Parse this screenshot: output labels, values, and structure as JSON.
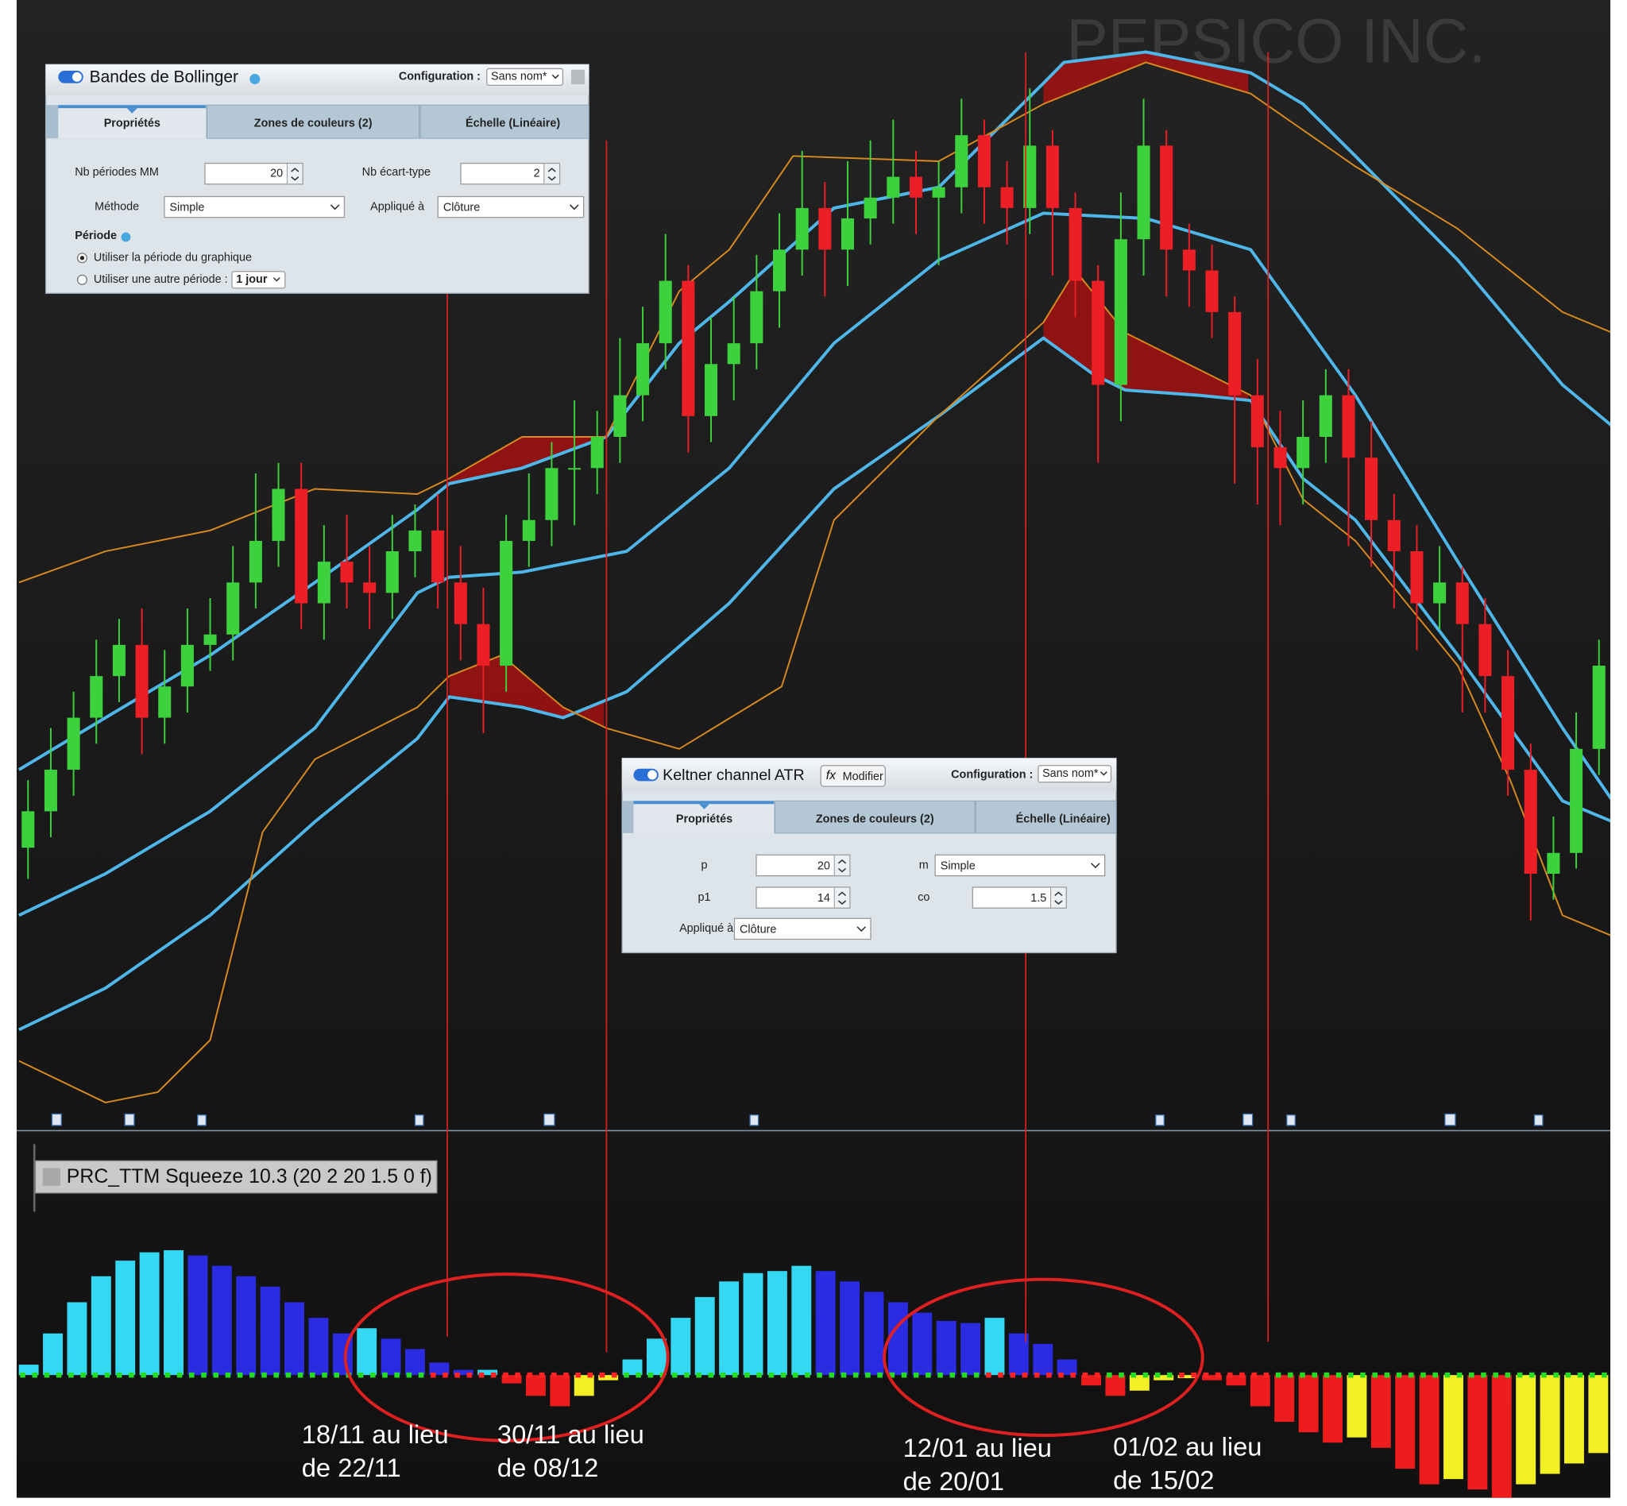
{
  "watermark": "PEPSICO INC.",
  "bollinger_panel": {
    "title": "Bandes de Bollinger",
    "config_label": "Configuration :",
    "config_value": "Sans nom*",
    "tabs": [
      "Propriétés",
      "Zones de couleurs (2)",
      "Échelle (Linéaire)"
    ],
    "periods_label": "Nb périodes MM",
    "periods": 20,
    "stddev_label": "Nb écart-type",
    "stddev": 2,
    "method_label": "Méthode",
    "method": "Simple",
    "applied_label": "Appliqué à",
    "applied": "Clôture",
    "period_heading": "Période",
    "radio_chart": "Utiliser la période du graphique",
    "radio_other": "Utiliser une autre période :",
    "other_period": "1 jour"
  },
  "keltner_panel": {
    "title": "Keltner channel ATR",
    "modify_icon": "fx",
    "modify": "Modifier",
    "config_label": "Configuration :",
    "config_value": "Sans nom*",
    "tabs": [
      "Propriétés",
      "Zones de couleurs (2)",
      "Échelle (Linéaire)"
    ],
    "p_label": "p",
    "p": 20,
    "m_label": "m",
    "m": "Simple",
    "p1_label": "p1",
    "p1": 14,
    "co_label": "co",
    "co": 1.5,
    "applied_label": "Appliqué à",
    "applied": "Clôture"
  },
  "indicator_label": "PRC_TTM Squeeze 10.3 (20 2 20 1.5 0 f)",
  "annotations": [
    [
      "18/11 au lieu",
      "de 22/11"
    ],
    [
      "30/11 au lieu",
      "de 08/12"
    ],
    [
      "12/01 au lieu",
      "de 20/01"
    ],
    [
      "01/02 au lieu",
      "de 15/02"
    ]
  ],
  "chart_data": [
    {
      "type": "candlestick",
      "ylim": [
        0,
        1085
      ],
      "up_color": "#3ed13e",
      "down_color": "#ec1f26",
      "open": [
        270,
        305,
        345,
        395,
        435,
        465,
        395,
        425,
        465,
        475,
        525,
        565,
        615,
        505,
        545,
        525,
        515,
        555,
        575,
        525,
        485,
        445,
        565,
        585,
        635,
        635,
        665,
        705,
        755,
        815,
        685,
        735,
        755,
        805,
        845,
        885,
        845,
        875,
        895,
        915,
        895,
        905,
        955,
        905,
        885,
        945,
        885,
        815,
        715,
        855,
        945,
        845,
        825,
        785,
        705,
        655,
        635,
        665,
        705,
        645,
        585,
        555,
        505,
        525,
        485,
        435,
        345,
        245,
        265,
        365
      ],
      "high": [
        335,
        385,
        420,
        470,
        490,
        500,
        460,
        500,
        510,
        560,
        630,
        640,
        640,
        580,
        590,
        560,
        590,
        600,
        610,
        560,
        520,
        590,
        630,
        660,
        700,
        690,
        760,
        790,
        860,
        830,
        780,
        800,
        840,
        880,
        940,
        910,
        930,
        950,
        970,
        940,
        930,
        990,
        970,
        930,
        1000,
        960,
        900,
        830,
        900,
        990,
        960,
        870,
        850,
        800,
        740,
        690,
        700,
        730,
        730,
        680,
        610,
        580,
        560,
        540,
        510,
        460,
        370,
        300,
        400,
        470
      ],
      "low": [
        240,
        280,
        320,
        370,
        410,
        360,
        370,
        400,
        440,
        450,
        500,
        540,
        480,
        470,
        500,
        480,
        490,
        530,
        500,
        450,
        380,
        420,
        540,
        560,
        580,
        610,
        640,
        680,
        730,
        650,
        660,
        700,
        730,
        770,
        820,
        800,
        810,
        850,
        870,
        860,
        830,
        880,
        870,
        850,
        860,
        820,
        780,
        640,
        680,
        820,
        800,
        790,
        760,
        620,
        600,
        580,
        600,
        640,
        560,
        540,
        500,
        460,
        480,
        400,
        400,
        320,
        200,
        220,
        250,
        340
      ],
      "close": [
        305,
        345,
        395,
        435,
        465,
        395,
        425,
        465,
        475,
        525,
        565,
        615,
        505,
        545,
        525,
        515,
        555,
        575,
        525,
        485,
        445,
        565,
        585,
        635,
        635,
        665,
        705,
        755,
        815,
        685,
        735,
        755,
        805,
        845,
        885,
        845,
        875,
        895,
        915,
        895,
        905,
        955,
        905,
        885,
        945,
        885,
        815,
        715,
        855,
        945,
        845,
        825,
        785,
        705,
        655,
        635,
        665,
        705,
        645,
        585,
        555,
        505,
        525,
        485,
        435,
        345,
        245,
        265,
        365,
        445
      ],
      "bands": [
        {
          "color": "#4fb6ea",
          "width": 3,
          "x": [
            -0.4,
            3.4,
            8.0,
            12.6,
            17.1,
            18.5,
            21.7,
            25.4,
            28.6,
            30.8,
            35.4,
            40.0,
            44.6,
            45.5,
            49.1,
            53.7,
            56.0,
            58.3,
            62.8,
            67.4,
            69.6
          ],
          "values": [
            345,
            395,
            455,
            525,
            595,
            620,
            635,
            665,
            755,
            795,
            885,
            905,
            1005,
            1025,
            1035,
            1015,
            985,
            935,
            835,
            715,
            675
          ]
        },
        {
          "color": "#4fb6ea",
          "width": 3,
          "x": [
            -0.4,
            3.4,
            8.0,
            12.6,
            17.1,
            18.5,
            21.7,
            26.3,
            30.8,
            35.4,
            40.0,
            44.6,
            49.1,
            53.7,
            58.3,
            62.8,
            67.4,
            69.6
          ],
          "values": [
            205,
            245,
            305,
            385,
            515,
            530,
            535,
            555,
            635,
            755,
            835,
            880,
            875,
            845,
            705,
            545,
            385,
            315
          ]
        },
        {
          "color": "#4fb6ea",
          "width": 3,
          "x": [
            -0.4,
            3.4,
            8.0,
            12.6,
            17.1,
            18.5,
            21.7,
            23.5,
            26.3,
            30.8,
            35.4,
            40.0,
            44.6,
            46.8,
            48.2,
            51.4,
            53.7,
            56.0,
            58.3,
            62.8,
            65.1,
            67.4,
            69.6
          ],
          "values": [
            95,
            135,
            205,
            295,
            375,
            415,
            405,
            395,
            420,
            505,
            615,
            685,
            760,
            725,
            710,
            705,
            700,
            625,
            585,
            455,
            385,
            315,
            295
          ]
        },
        {
          "color": "#d98a1e",
          "width": 1.5,
          "x": [
            -0.4,
            3.4,
            8.0,
            12.6,
            17.1,
            18.5,
            21.7,
            25.4,
            28.6,
            30.8,
            33.6,
            40.0,
            44.6,
            49.1,
            53.7,
            58.3,
            62.8,
            67.4,
            69.6
          ],
          "values": [
            525,
            555,
            575,
            615,
            610,
            625,
            665,
            665,
            805,
            845,
            935,
            930,
            985,
            1025,
            995,
            925,
            865,
            785,
            765
          ]
        },
        {
          "color": "#d98a1e",
          "width": 1.5,
          "x": [
            -0.4,
            3.4,
            5.7,
            8.0,
            10.3,
            12.6,
            17.1,
            18.5,
            20.8,
            23.5,
            25.4,
            28.6,
            33.1,
            35.4,
            40.0,
            44.6,
            46.0,
            48.2,
            53.7,
            56.0,
            58.3,
            62.8,
            65.1,
            67.4,
            69.6
          ],
          "values": [
            65,
            25,
            35,
            85,
            285,
            355,
            405,
            435,
            455,
            405,
            385,
            365,
            425,
            585,
            685,
            775,
            825,
            765,
            705,
            605,
            565,
            445,
            335,
            205,
            185
          ]
        }
      ],
      "fills": [
        {
          "bands": [
            0,
            3
          ]
        },
        {
          "bands": [
            2,
            4
          ]
        }
      ],
      "fill_ranges": [
        [
          18.5,
          25.4
        ],
        [
          44.6,
          53.7
        ]
      ],
      "fill_color": "#a31212"
    },
    {
      "type": "bar",
      "ylim": [
        -130,
        130
      ],
      "values": [
        10,
        40,
        70,
        95,
        110,
        118,
        120,
        115,
        105,
        95,
        85,
        70,
        55,
        40,
        45,
        35,
        25,
        12,
        5,
        5,
        -8,
        -20,
        -30,
        -20,
        -5,
        15,
        35,
        55,
        75,
        90,
        98,
        100,
        105,
        100,
        90,
        80,
        70,
        60,
        52,
        50,
        55,
        40,
        30,
        15,
        -10,
        -20,
        -15,
        -5,
        -3,
        -5,
        -10,
        -30,
        -45,
        -55,
        -65,
        -60,
        -70,
        -90,
        -105,
        -100,
        -110,
        -120,
        -105,
        -95,
        -85,
        -75
      ],
      "colors": {
        "rising_positive": "#35d8f2",
        "falling_positive": "#2b2be2",
        "falling_negative": "#ee1d1d",
        "rising_negative": "#f2f024"
      },
      "squeeze_ranges": [
        [
          17,
          24
        ],
        [
          40,
          44
        ],
        [
          48,
          51
        ]
      ],
      "squeeze_on_color": "#ff2323",
      "squeeze_off_color": "#25dc25"
    }
  ]
}
